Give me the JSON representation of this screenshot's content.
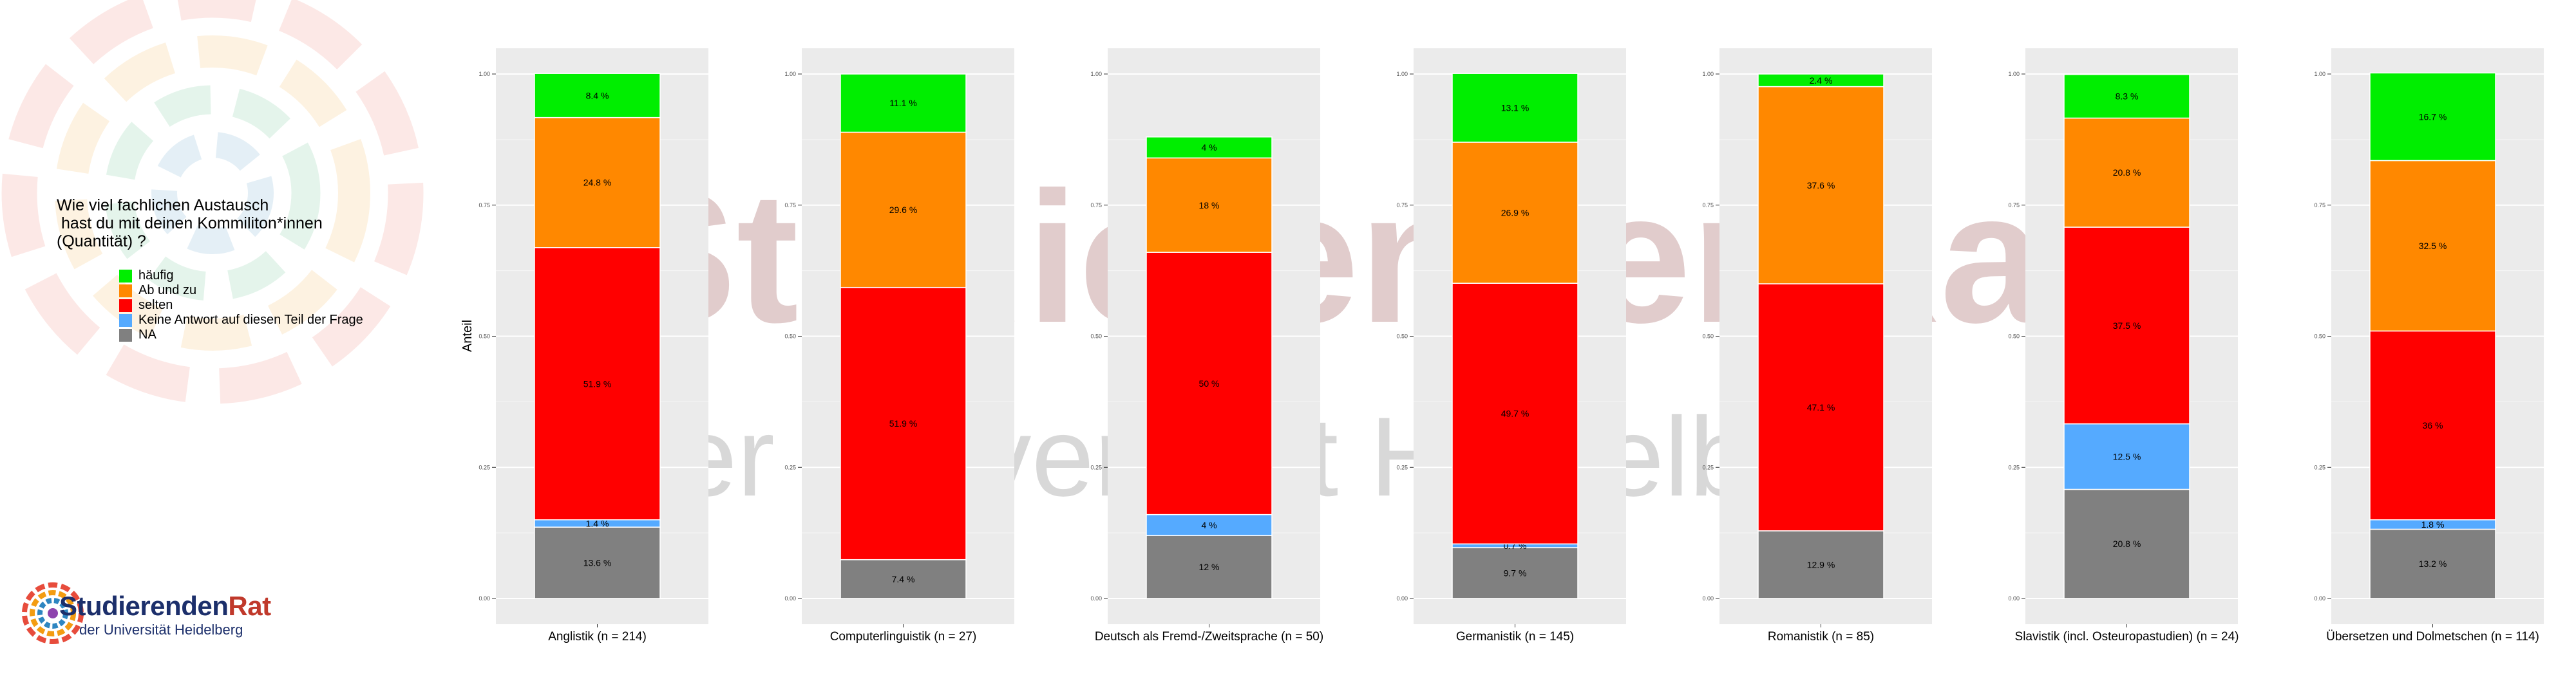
{
  "legend": {
    "title": "Wie viel fachlichen Austausch\n hast du mit deinen Kommiliton*innen\n(Quantität) ?",
    "items": [
      {
        "label": "häufig",
        "color": "#00ee00"
      },
      {
        "label": "Ab und zu",
        "color": "#ff8800"
      },
      {
        "label": "selten",
        "color": "#ff0000"
      },
      {
        "label": "Keine Antwort auf diesen Teil der Frage",
        "color": "#55aaff"
      },
      {
        "label": "NA",
        "color": "#808080"
      }
    ]
  },
  "logo": {
    "name_part1": "Studierenden",
    "name_part2": "Rat",
    "subtitle": "der Universität Heidelberg"
  },
  "watermark": {
    "line1": "StudierendenRat",
    "line2": "der Universität Heidelberg"
  },
  "chart_data": {
    "type": "bar",
    "stacked": true,
    "ylabel": "Anteil",
    "ylim": [
      0,
      1
    ],
    "yticks": [
      "0.00",
      "0.25",
      "0.50",
      "0.75",
      "1.00"
    ],
    "grid": true,
    "legend_position": "left",
    "categories": [
      "Anglistik (n = 214)",
      "Computerlinguistik (n = 27)",
      "Deutsch als Fremd-/Zweitsprache (n = 50)",
      "Germanistik (n = 145)",
      "Romanistik (n = 85)",
      "Slavistik (incl. Osteuropastudien) (n = 24)",
      "Übersetzen und Dolmetschen (n = 114)"
    ],
    "series": [
      {
        "name": "häufig",
        "color": "#00ee00",
        "values": [
          0.084,
          0.111,
          0.04,
          0.131,
          0.024,
          0.083,
          0.167
        ],
        "labels": [
          "8.4 %",
          "11.1 %",
          "4 %",
          "13.1 %",
          "2.4 %",
          "8.3 %",
          "16.7 %"
        ]
      },
      {
        "name": "Ab und zu",
        "color": "#ff8800",
        "values": [
          0.248,
          0.296,
          0.18,
          0.269,
          0.376,
          0.208,
          0.325
        ],
        "labels": [
          "24.8 %",
          "29.6 %",
          "18 %",
          "26.9 %",
          "37.6 %",
          "20.8 %",
          "32.5 %"
        ]
      },
      {
        "name": "selten",
        "color": "#ff0000",
        "values": [
          0.519,
          0.519,
          0.5,
          0.497,
          0.471,
          0.375,
          0.36
        ],
        "labels": [
          "51.9 %",
          "51.9 %",
          "50 %",
          "49.7 %",
          "47.1 %",
          "37.5 %",
          "36 %"
        ]
      },
      {
        "name": "Keine Antwort auf diesen Teil der Frage",
        "color": "#55aaff",
        "values": [
          0.014,
          0.0,
          0.04,
          0.007,
          0.0,
          0.125,
          0.018
        ],
        "labels": [
          "1.4 %",
          "",
          "4 %",
          "0.7 %",
          "",
          "12.5 %",
          "1.8 %"
        ]
      },
      {
        "name": "NA",
        "color": "#808080",
        "values": [
          0.136,
          0.074,
          0.12,
          0.097,
          0.129,
          0.208,
          0.132
        ],
        "labels": [
          "13.6 %",
          "7.4 %",
          "12 %",
          "9.7 %",
          "12.9 %",
          "20.8 %",
          "13.2 %"
        ]
      }
    ]
  }
}
